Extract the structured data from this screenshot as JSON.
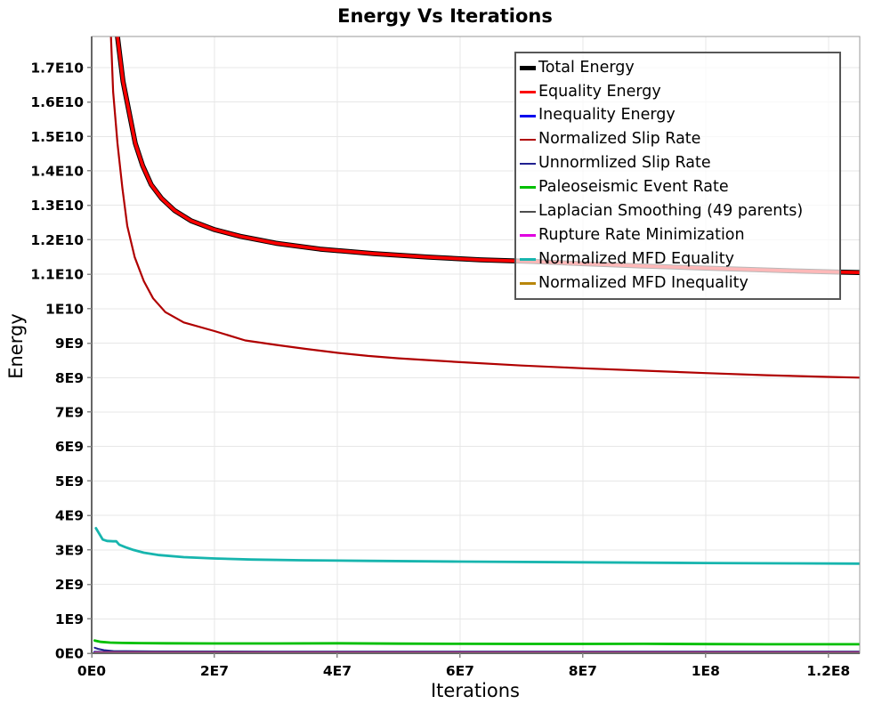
{
  "title": "Energy Vs Iterations",
  "chart_data": {
    "type": "line",
    "title": "Energy Vs Iterations",
    "xlabel": "Iterations",
    "ylabel": "Energy",
    "x_unit_multiplier": 10000000,
    "y_unit_multiplier": 1000000000,
    "xlim_e7": [
      0,
      12.51
    ],
    "ylim_e9": [
      0,
      17.9
    ],
    "grid": true,
    "legend_position": "inside-top-right",
    "x_ticks": [
      {
        "value_e7": 0,
        "label": "0E0"
      },
      {
        "value_e7": 2,
        "label": "2E7"
      },
      {
        "value_e7": 4,
        "label": "4E7"
      },
      {
        "value_e7": 6,
        "label": "6E7"
      },
      {
        "value_e7": 8,
        "label": "8E7"
      },
      {
        "value_e7": 10,
        "label": "1E8"
      },
      {
        "value_e7": 12,
        "label": "1.2E8"
      }
    ],
    "y_ticks": [
      {
        "value_e9": 0,
        "label": "0E0"
      },
      {
        "value_e9": 1,
        "label": "1E9"
      },
      {
        "value_e9": 2,
        "label": "2E9"
      },
      {
        "value_e9": 3,
        "label": "3E9"
      },
      {
        "value_e9": 4,
        "label": "4E9"
      },
      {
        "value_e9": 5,
        "label": "5E9"
      },
      {
        "value_e9": 6,
        "label": "6E9"
      },
      {
        "value_e9": 7,
        "label": "7E9"
      },
      {
        "value_e9": 8,
        "label": "8E9"
      },
      {
        "value_e9": 9,
        "label": "9E9"
      },
      {
        "value_e9": 10,
        "label": "1E10"
      },
      {
        "value_e9": 11,
        "label": "1.1E10"
      },
      {
        "value_e9": 12,
        "label": "1.2E10"
      },
      {
        "value_e9": 13,
        "label": "1.3E10"
      },
      {
        "value_e9": 14,
        "label": "1.4E10"
      },
      {
        "value_e9": 15,
        "label": "1.5E10"
      },
      {
        "value_e9": 16,
        "label": "1.6E10"
      },
      {
        "value_e9": 17,
        "label": "1.7E10"
      }
    ],
    "series": [
      {
        "name": "Total Energy",
        "color": "#000000",
        "width": 5.6,
        "x_e7": [
          0.3,
          0.36,
          0.42,
          0.51,
          0.61,
          0.71,
          0.83,
          0.97,
          1.14,
          1.35,
          1.62,
          1.99,
          2.42,
          3.0,
          3.72,
          4.59,
          5.46,
          6.33,
          7.2,
          8.07,
          8.94,
          9.81,
          10.68,
          11.55,
          12.23,
          12.51
        ],
        "y_e9": [
          21.5,
          19.5,
          17.9,
          16.6,
          15.7,
          14.8,
          14.15,
          13.6,
          13.2,
          12.85,
          12.55,
          12.3,
          12.1,
          11.9,
          11.73,
          11.6,
          11.5,
          11.42,
          11.37,
          11.3,
          11.24,
          11.19,
          11.14,
          11.09,
          11.06,
          11.05
        ]
      },
      {
        "name": "Equality Energy",
        "color": "#fb0000",
        "width": 3.6,
        "x_e7": [
          0.3,
          0.36,
          0.42,
          0.51,
          0.61,
          0.71,
          0.83,
          0.97,
          1.14,
          1.35,
          1.62,
          1.99,
          2.42,
          3.0,
          3.72,
          4.59,
          5.46,
          6.33,
          7.2,
          8.07,
          8.94,
          9.81,
          10.68,
          11.55,
          12.23,
          12.51
        ],
        "y_e9": [
          21.5,
          19.5,
          17.9,
          16.6,
          15.7,
          14.8,
          14.15,
          13.6,
          13.2,
          12.85,
          12.55,
          12.3,
          12.1,
          11.9,
          11.73,
          11.6,
          11.5,
          11.42,
          11.37,
          11.3,
          11.24,
          11.19,
          11.14,
          11.09,
          11.06,
          11.05
        ]
      },
      {
        "name": "Inequality Energy",
        "color": "#0000ee",
        "width": 3.0,
        "x_e7": [
          0.05,
          0.5,
          2,
          5,
          9,
          12.51
        ],
        "y_e9": [
          0.03,
          0.02,
          0.02,
          0.02,
          0.02,
          0.02
        ]
      },
      {
        "name": "Normalized Slip Rate",
        "color": "#b00000",
        "width": 2.2,
        "x_e7": [
          0.25,
          0.29,
          0.35,
          0.42,
          0.5,
          0.58,
          0.7,
          0.85,
          1.0,
          1.2,
          1.5,
          2.0,
          2.5,
          3.0,
          3.5,
          4.0,
          4.5,
          5.0,
          6.0,
          7.0,
          8.0,
          9.0,
          10.0,
          11.0,
          12.0,
          12.51
        ],
        "y_e9": [
          21.0,
          19.0,
          16.3,
          14.8,
          13.5,
          12.4,
          11.5,
          10.8,
          10.3,
          9.9,
          9.6,
          9.35,
          9.08,
          8.95,
          8.83,
          8.72,
          8.63,
          8.56,
          8.45,
          8.35,
          8.27,
          8.2,
          8.13,
          8.07,
          8.02,
          8.0
        ]
      },
      {
        "name": "Unnormlized Slip Rate",
        "color": "#202090",
        "width": 2.0,
        "x_e7": [
          0.05,
          0.1,
          0.2,
          0.35,
          1,
          3,
          6,
          9,
          12.51
        ],
        "y_e9": [
          0.16,
          0.13,
          0.09,
          0.065,
          0.055,
          0.05,
          0.05,
          0.05,
          0.05
        ]
      },
      {
        "name": "Paleoseismic Event Rate",
        "color": "#00bf00",
        "width": 2.8,
        "x_e7": [
          0.05,
          0.15,
          0.3,
          0.5,
          0.8,
          1.2,
          2,
          3,
          4,
          5,
          6,
          7,
          8,
          9,
          10,
          11,
          12,
          12.51
        ],
        "y_e9": [
          0.37,
          0.33,
          0.31,
          0.3,
          0.295,
          0.29,
          0.285,
          0.285,
          0.29,
          0.28,
          0.275,
          0.27,
          0.27,
          0.275,
          0.265,
          0.26,
          0.26,
          0.26
        ]
      },
      {
        "name": "Laplacian Smoothing (49 parents)",
        "color": "#4d4d4d",
        "width": 2.0,
        "x_e7": [
          0.05,
          3,
          8,
          12.51
        ],
        "y_e9": [
          0.035,
          0.033,
          0.033,
          0.033
        ]
      },
      {
        "name": "Rupture Rate Minimization",
        "color": "#e000e0",
        "width": 2.0,
        "x_e7": [
          0.05,
          4,
          12.51
        ],
        "y_e9": [
          0.02,
          0.018,
          0.018
        ]
      },
      {
        "name": "Normalized MFD Equality",
        "color": "#17b5ae",
        "width": 2.8,
        "x_e7": [
          0.07,
          0.12,
          0.18,
          0.25,
          0.35,
          0.4,
          0.45,
          0.55,
          0.68,
          0.85,
          1.1,
          1.5,
          2.0,
          2.6,
          3.4,
          4.5,
          6.0,
          8.0,
          10.0,
          11.5,
          12.51
        ],
        "y_e9": [
          3.63,
          3.48,
          3.3,
          3.26,
          3.25,
          3.25,
          3.15,
          3.08,
          3.0,
          2.92,
          2.85,
          2.79,
          2.75,
          2.72,
          2.7,
          2.68,
          2.66,
          2.64,
          2.62,
          2.61,
          2.6
        ]
      },
      {
        "name": "Normalized MFD Inequality",
        "color": "#b8860b",
        "width": 2.0,
        "x_e7": [
          0.05,
          4,
          12.51
        ],
        "y_e9": [
          0.008,
          0.008,
          0.008
        ]
      }
    ]
  },
  "colors": {
    "grid": "#e7e7e7",
    "plot_border": "#9a9a9a",
    "axis_line": "#666666",
    "tick": "#888888",
    "legend_border": "#575757"
  }
}
